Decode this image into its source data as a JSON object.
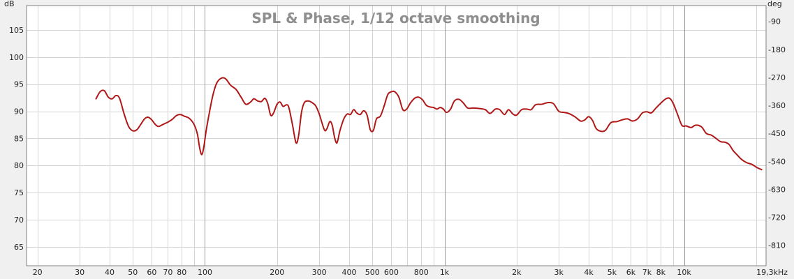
{
  "chart_data": {
    "type": "line",
    "title": "SPL & Phase, 1/12 octave smoothing",
    "y_unit_label": "dB",
    "y2_unit_label": "deg",
    "x_scale": "log",
    "xlim": [
      18,
      22000
    ],
    "ylim": [
      61.5,
      109.5
    ],
    "y2lim": [
      -876,
      -39
    ],
    "grid": true,
    "x_ticks": [
      {
        "value": 20,
        "label": "20"
      },
      {
        "value": 30,
        "label": "30"
      },
      {
        "value": 40,
        "label": "40"
      },
      {
        "value": 50,
        "label": "50"
      },
      {
        "value": 60,
        "label": "60"
      },
      {
        "value": 70,
        "label": "70"
      },
      {
        "value": 80,
        "label": "80"
      },
      {
        "value": 100,
        "label": "100"
      },
      {
        "value": 200,
        "label": "200"
      },
      {
        "value": 300,
        "label": "300"
      },
      {
        "value": 400,
        "label": "400"
      },
      {
        "value": 500,
        "label": "500"
      },
      {
        "value": 600,
        "label": "600"
      },
      {
        "value": 800,
        "label": "800"
      },
      {
        "value": 1000,
        "label": "1k"
      },
      {
        "value": 2000,
        "label": "2k"
      },
      {
        "value": 3000,
        "label": "3k"
      },
      {
        "value": 4000,
        "label": "4k"
      },
      {
        "value": 5000,
        "label": "5k"
      },
      {
        "value": 6000,
        "label": "6k"
      },
      {
        "value": 7000,
        "label": "7k"
      },
      {
        "value": 8000,
        "label": "8k"
      },
      {
        "value": 10000,
        "label": "10k"
      },
      {
        "value": 19300,
        "label": "19,3kHz"
      }
    ],
    "x_minor_grid": [
      20,
      30,
      40,
      50,
      60,
      70,
      80,
      90,
      200,
      300,
      400,
      500,
      600,
      700,
      800,
      900,
      2000,
      3000,
      4000,
      5000,
      6000,
      7000,
      8000,
      9000,
      20000
    ],
    "x_major_grid": [
      100,
      1000,
      10000
    ],
    "y_ticks": [
      65,
      70,
      75,
      80,
      85,
      90,
      95,
      100,
      105
    ],
    "y2_ticks": [
      -810,
      -720,
      -630,
      -540,
      -450,
      -360,
      -270,
      -180,
      -90
    ],
    "series": [
      {
        "color": "#b01818",
        "points": [
          [
            35,
            92.2
          ],
          [
            36.5,
            93.6
          ],
          [
            38,
            93.8
          ],
          [
            39.5,
            92.6
          ],
          [
            41,
            92.3
          ],
          [
            42.5,
            92.9
          ],
          [
            44,
            92.4
          ],
          [
            46,
            89.5
          ],
          [
            48,
            87.2
          ],
          [
            50,
            86.4
          ],
          [
            52,
            86.6
          ],
          [
            54,
            87.6
          ],
          [
            56,
            88.6
          ],
          [
            58,
            88.9
          ],
          [
            60,
            88.4
          ],
          [
            62,
            87.6
          ],
          [
            64,
            87.2
          ],
          [
            67,
            87.6
          ],
          [
            70,
            88.0
          ],
          [
            73,
            88.5
          ],
          [
            76,
            89.2
          ],
          [
            79,
            89.4
          ],
          [
            82,
            89.1
          ],
          [
            86,
            88.7
          ],
          [
            90,
            87.6
          ],
          [
            93,
            85.8
          ],
          [
            95,
            83.3
          ],
          [
            97,
            82.0
          ],
          [
            99,
            83.5
          ],
          [
            101,
            86.2
          ],
          [
            104,
            89.4
          ],
          [
            108,
            93.0
          ],
          [
            112,
            95.2
          ],
          [
            117,
            96.1
          ],
          [
            122,
            96.0
          ],
          [
            128,
            94.8
          ],
          [
            135,
            94.0
          ],
          [
            142,
            92.5
          ],
          [
            148,
            91.3
          ],
          [
            155,
            91.7
          ],
          [
            160,
            92.3
          ],
          [
            166,
            91.9
          ],
          [
            172,
            91.8
          ],
          [
            178,
            92.4
          ],
          [
            183,
            91.4
          ],
          [
            188,
            89.3
          ],
          [
            193,
            89.6
          ],
          [
            200,
            91.3
          ],
          [
            206,
            91.7
          ],
          [
            212,
            90.9
          ],
          [
            219,
            91.2
          ],
          [
            224,
            90.7
          ],
          [
            232,
            87.5
          ],
          [
            240,
            84.2
          ],
          [
            246,
            85.5
          ],
          [
            253,
            89.8
          ],
          [
            260,
            91.6
          ],
          [
            270,
            91.9
          ],
          [
            280,
            91.6
          ],
          [
            290,
            91.0
          ],
          [
            300,
            89.5
          ],
          [
            315,
            86.6
          ],
          [
            323,
            86.8
          ],
          [
            332,
            88.1
          ],
          [
            340,
            87.4
          ],
          [
            348,
            85.1
          ],
          [
            356,
            84.2
          ],
          [
            366,
            86.4
          ],
          [
            380,
            88.6
          ],
          [
            393,
            89.5
          ],
          [
            405,
            89.4
          ],
          [
            418,
            90.3
          ],
          [
            430,
            89.7
          ],
          [
            445,
            89.4
          ],
          [
            460,
            90.1
          ],
          [
            475,
            89.3
          ],
          [
            490,
            86.6
          ],
          [
            505,
            86.5
          ],
          [
            520,
            88.6
          ],
          [
            540,
            89.1
          ],
          [
            560,
            91.0
          ],
          [
            580,
            93.1
          ],
          [
            600,
            93.6
          ],
          [
            620,
            93.6
          ],
          [
            645,
            92.6
          ],
          [
            670,
            90.3
          ],
          [
            695,
            90.4
          ],
          [
            720,
            91.5
          ],
          [
            750,
            92.4
          ],
          [
            780,
            92.6
          ],
          [
            810,
            92.1
          ],
          [
            840,
            91.1
          ],
          [
            870,
            90.8
          ],
          [
            900,
            90.7
          ],
          [
            930,
            90.4
          ],
          [
            960,
            90.7
          ],
          [
            990,
            90.4
          ],
          [
            1020,
            89.8
          ],
          [
            1060,
            90.4
          ],
          [
            1100,
            91.9
          ],
          [
            1150,
            92.2
          ],
          [
            1200,
            91.5
          ],
          [
            1250,
            90.6
          ],
          [
            1320,
            90.6
          ],
          [
            1400,
            90.5
          ],
          [
            1480,
            90.3
          ],
          [
            1550,
            89.6
          ],
          [
            1630,
            90.4
          ],
          [
            1700,
            90.3
          ],
          [
            1780,
            89.4
          ],
          [
            1850,
            90.3
          ],
          [
            1930,
            89.5
          ],
          [
            2000,
            89.3
          ],
          [
            2100,
            90.3
          ],
          [
            2200,
            90.4
          ],
          [
            2300,
            90.3
          ],
          [
            2400,
            91.2
          ],
          [
            2550,
            91.3
          ],
          [
            2700,
            91.6
          ],
          [
            2850,
            91.4
          ],
          [
            3000,
            90.0
          ],
          [
            3150,
            89.8
          ],
          [
            3300,
            89.6
          ],
          [
            3500,
            89.0
          ],
          [
            3700,
            88.2
          ],
          [
            3850,
            88.4
          ],
          [
            4000,
            89.0
          ],
          [
            4150,
            88.3
          ],
          [
            4300,
            86.8
          ],
          [
            4500,
            86.3
          ],
          [
            4700,
            86.5
          ],
          [
            4950,
            87.9
          ],
          [
            5250,
            88.1
          ],
          [
            5500,
            88.4
          ],
          [
            5800,
            88.6
          ],
          [
            6100,
            88.2
          ],
          [
            6400,
            88.6
          ],
          [
            6700,
            89.7
          ],
          [
            7000,
            89.9
          ],
          [
            7300,
            89.7
          ],
          [
            7600,
            90.5
          ],
          [
            8000,
            91.5
          ],
          [
            8400,
            92.3
          ],
          [
            8700,
            92.4
          ],
          [
            9000,
            91.5
          ],
          [
            9400,
            89.4
          ],
          [
            9800,
            87.4
          ],
          [
            10200,
            87.3
          ],
          [
            10700,
            87.0
          ],
          [
            11100,
            87.4
          ],
          [
            11500,
            87.4
          ],
          [
            11900,
            87.0
          ],
          [
            12400,
            85.9
          ],
          [
            13000,
            85.6
          ],
          [
            13500,
            85.1
          ],
          [
            14200,
            84.4
          ],
          [
            14800,
            84.3
          ],
          [
            15400,
            83.9
          ],
          [
            16000,
            82.8
          ],
          [
            16700,
            81.9
          ],
          [
            17400,
            81.1
          ],
          [
            18300,
            80.5
          ],
          [
            19200,
            80.2
          ],
          [
            20200,
            79.6
          ],
          [
            21200,
            79.2
          ]
        ]
      }
    ]
  }
}
